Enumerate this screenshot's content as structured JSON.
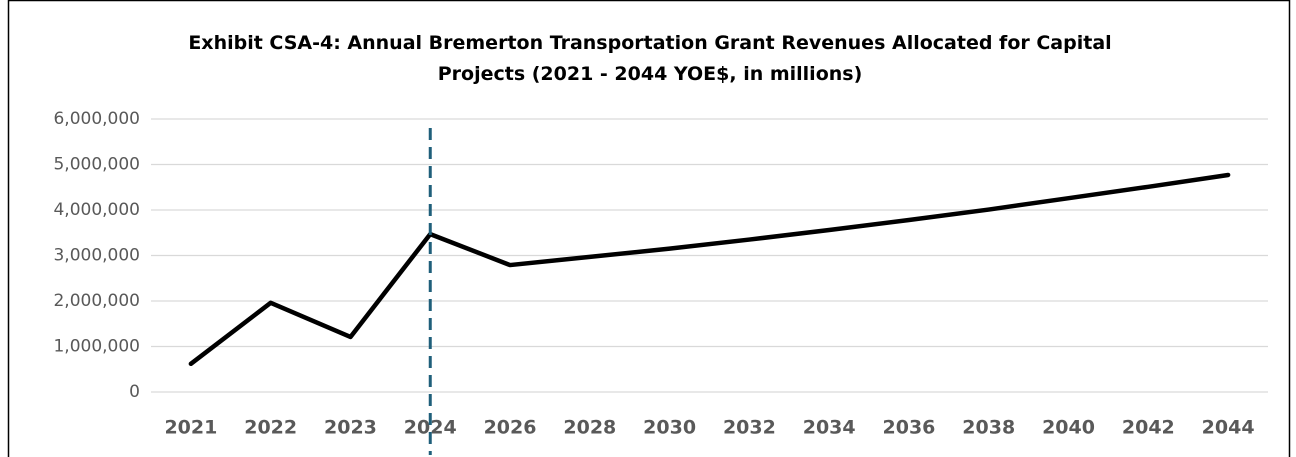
{
  "chart_data": {
    "type": "line",
    "title": "Exhibit CSA-4: Annual Bremerton Transportation Grant Revenues Allocated for Capital\nProjects (2021 - 2044 YOE$, in millions)",
    "categories": [
      "2021",
      "2022",
      "2023",
      "2024",
      "2026",
      "2028",
      "2030",
      "2032",
      "2034",
      "2036",
      "2038",
      "2040",
      "2042",
      "2044"
    ],
    "series": [
      {
        "color": "#000000",
        "values": [
          620000,
          1960000,
          1210000,
          3470000,
          2790000,
          2970000,
          3150000,
          3350000,
          3560000,
          3780000,
          4010000,
          4260000,
          4510000,
          4770000
        ]
      }
    ],
    "ylim": [
      0,
      6000000
    ],
    "yticks": [
      0,
      {
        "value": 1000000,
        "label": "1,000,000"
      },
      {
        "value": 2000000,
        "label": "2,000,000"
      },
      {
        "value": 3000000,
        "label": "3,000,000"
      },
      {
        "value": 4000000,
        "label": "4,000,000"
      },
      {
        "value": 5000000,
        "label": "5,000,000"
      },
      {
        "value": 6000000,
        "label": "6,000,000"
      }
    ],
    "grid": true,
    "vline": {
      "at": "2024",
      "color": "#1f5f7a",
      "dashed": true
    }
  }
}
